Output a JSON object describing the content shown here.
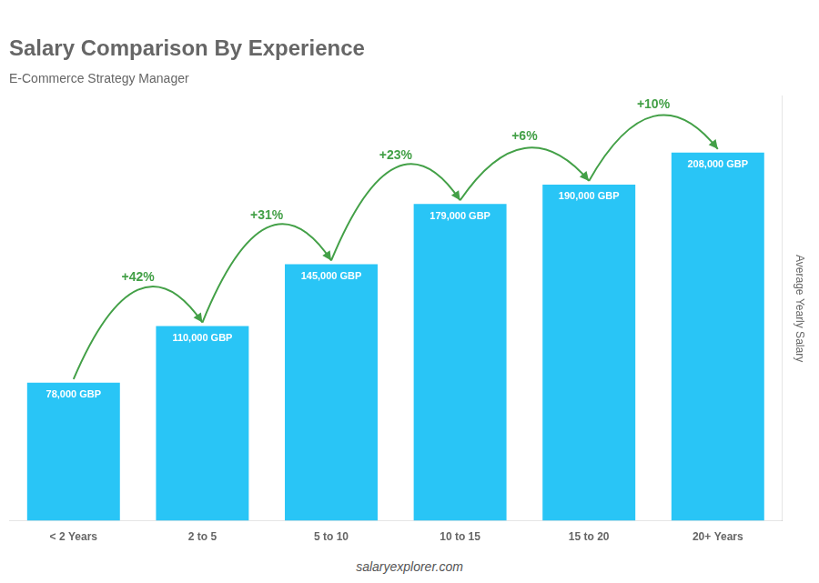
{
  "chart_data": {
    "type": "bar",
    "title": "Salary Comparison By Experience",
    "subtitle": "E-Commerce Strategy Manager",
    "categories": [
      "< 2 Years",
      "2 to 5",
      "5 to 10",
      "10 to 15",
      "15 to 20",
      "20+ Years"
    ],
    "values": [
      78000,
      110000,
      145000,
      179000,
      190000,
      208000
    ],
    "value_labels": [
      "78,000 GBP",
      "110,000 GBP",
      "145,000 GBP",
      "179,000 GBP",
      "190,000 GBP",
      "208,000 GBP"
    ],
    "data_labels": true,
    "color": "#29C5F6",
    "ylabel": "Average Yearly Salary",
    "ylim": [
      0,
      240000
    ],
    "tick_labels": "x",
    "grid": false,
    "annotations": [
      "+42%",
      "+31%",
      "+23%",
      "+6%",
      "+10%"
    ],
    "footer": "salaryexplorer.com"
  }
}
